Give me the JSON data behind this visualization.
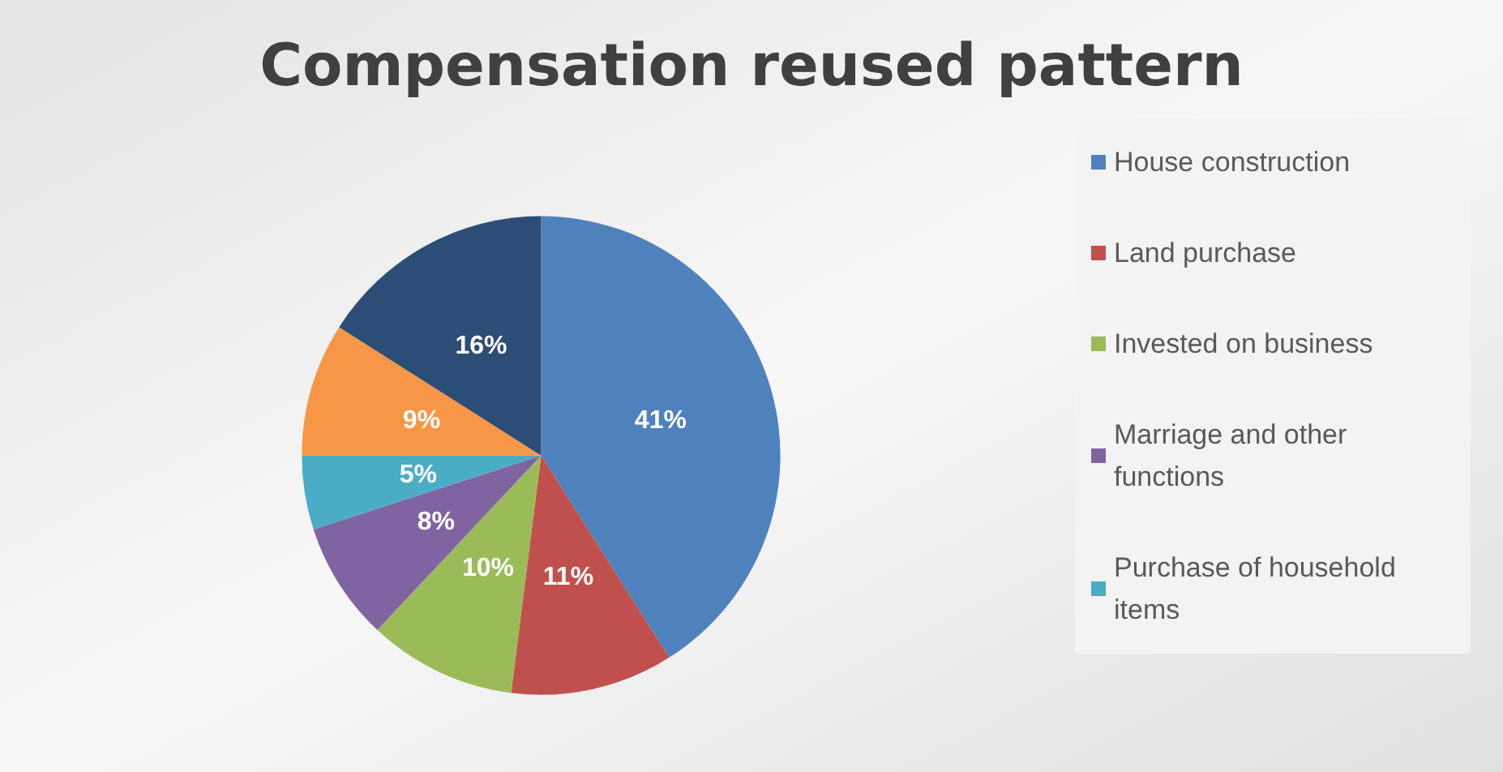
{
  "chart_data": {
    "type": "pie",
    "title": "Compensation reused pattern",
    "categories": [
      "House construction",
      "Land purchase",
      "Invested on business",
      "Marriage and other functions",
      "Purchase of household items",
      null,
      null
    ],
    "values": [
      41,
      11,
      10,
      8,
      5,
      9,
      16
    ],
    "value_labels": [
      "41%",
      "11%",
      "10%",
      "8%",
      "5%",
      "9%",
      "16%"
    ],
    "colors": [
      "#4f81bd",
      "#c0504d",
      "#9bbb59",
      "#8064a2",
      "#4bacc6",
      "#f79646",
      "#2c4d75"
    ],
    "legend": "right"
  }
}
